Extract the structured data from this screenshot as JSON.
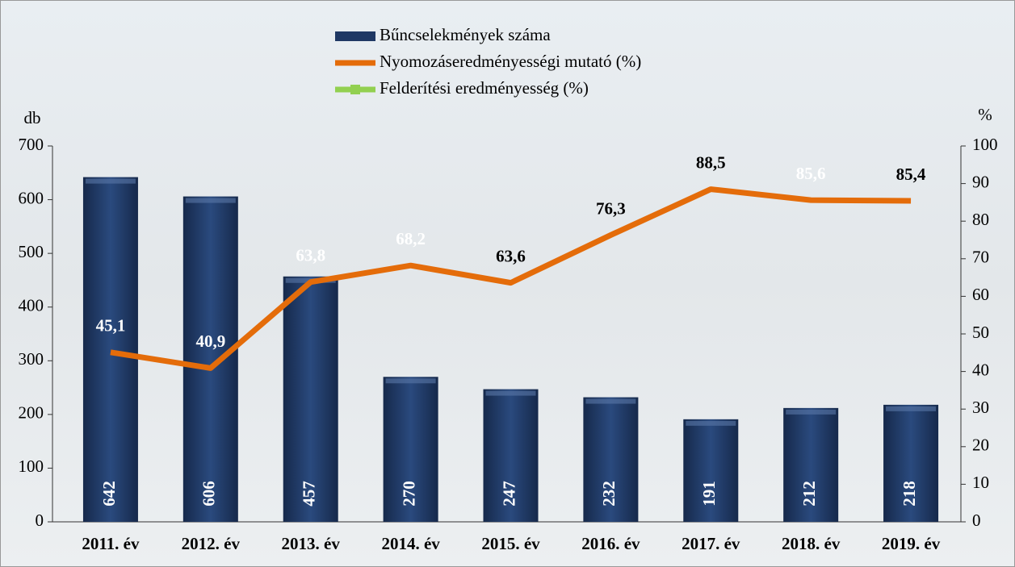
{
  "chart_data": {
    "type": "bar",
    "categories": [
      "2011. év",
      "2012. év",
      "2013. év",
      "2014. év",
      "2015. év",
      "2016. év",
      "2017. év",
      "2018. év",
      "2019. év"
    ],
    "series": [
      {
        "name": "Bűncselekmények száma",
        "color": "#1f3864",
        "type": "bar",
        "values": [
          642,
          606,
          457,
          270,
          247,
          232,
          191,
          212,
          218
        ]
      },
      {
        "name": "Nyomozáseredményességi mutató (%)",
        "color": "#e46c0a",
        "type": "line",
        "axis": "y2",
        "values": [
          45.1,
          40.9,
          63.8,
          68.2,
          63.6,
          76.3,
          88.5,
          85.6,
          85.4
        ],
        "value_labels": [
          "45,1",
          "40,9",
          "63,8",
          "68,2",
          "63,6",
          "76,3",
          "88,5",
          "85,6",
          "85,4"
        ],
        "value_label_colors": [
          "#ffffff",
          "#ffffff",
          "#ffffff",
          "#ffffff",
          "#000000",
          "#000000",
          "#000000",
          "#ffffff",
          "#000000"
        ]
      },
      {
        "name": "Felderítési eredményesség (%)",
        "color": "#92d050",
        "type": "line",
        "axis": "y2",
        "values": [
          null,
          null,
          null,
          null,
          null,
          null,
          null,
          null,
          null
        ]
      }
    ],
    "ylabel": "db",
    "y2label": "%",
    "ylim": [
      0,
      700
    ],
    "yticks": [
      0,
      100,
      200,
      300,
      400,
      500,
      600,
      700
    ],
    "y2lim": [
      0,
      100
    ],
    "y2ticks": [
      0,
      10,
      20,
      30,
      40,
      50,
      60,
      70,
      80,
      90,
      100
    ]
  }
}
